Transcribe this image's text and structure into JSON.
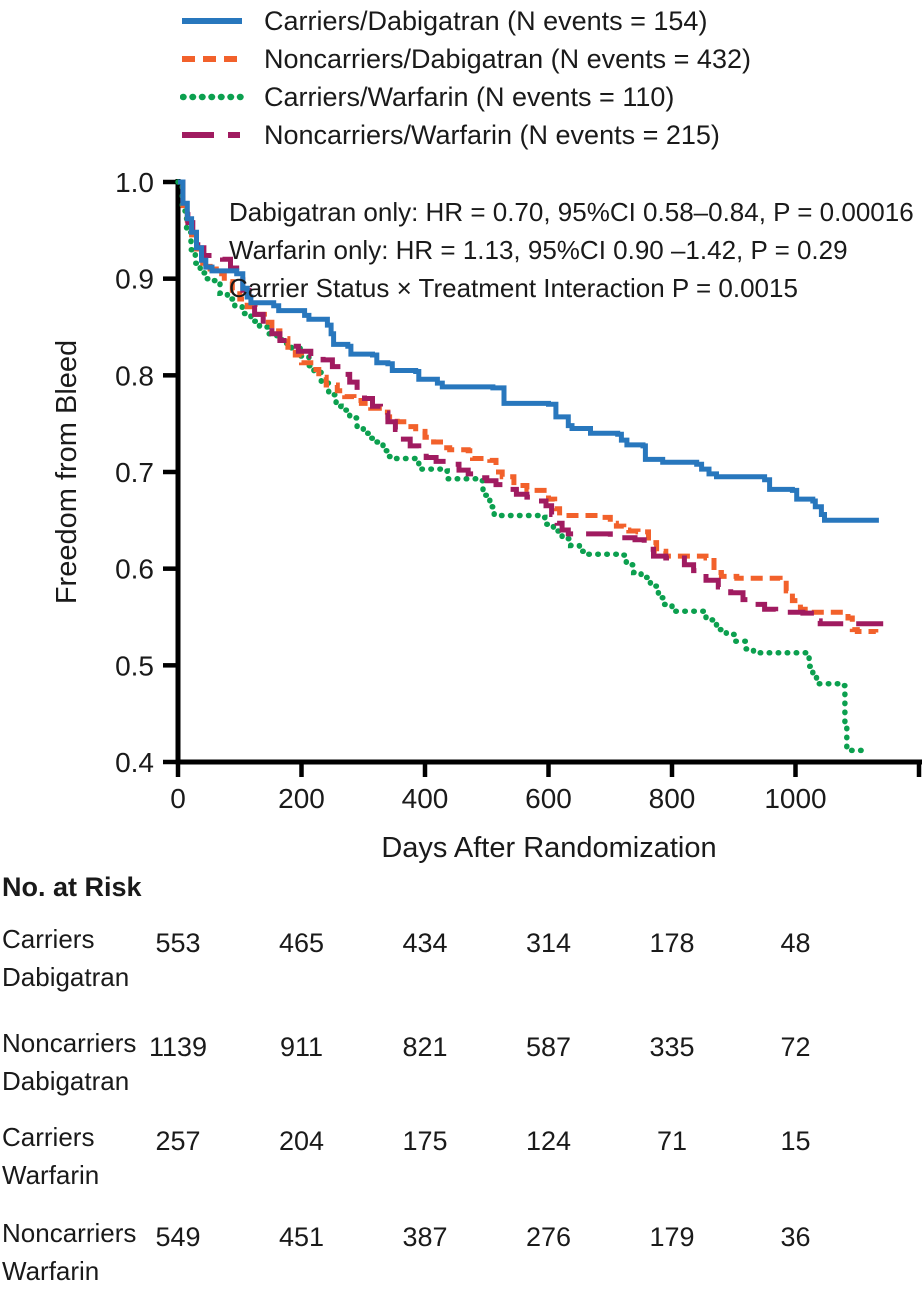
{
  "figure": {
    "background": "#ffffff"
  },
  "colors": {
    "carriers_dabigatran": "#2877BD",
    "noncarriers_dabigatran": "#F2612B",
    "carriers_warfarin": "#0CA04F",
    "noncarriers_warfarin": "#A01B60",
    "axis": "#000000",
    "text": "#1a1a1a"
  },
  "legend": {
    "items": [
      {
        "label": "Carriers/Dabigatran (N events = 154)",
        "color": "#2877BD",
        "line_style": "solid"
      },
      {
        "label": "Noncarriers/Dabigatran (N events = 432)",
        "color": "#F2612B",
        "line_style": "dashed"
      },
      {
        "label": "Carriers/Warfarin (N events = 110)",
        "color": "#0CA04F",
        "line_style": "dotted"
      },
      {
        "label": "Noncarriers/Warfarin (N events = 215)",
        "color": "#A01B60",
        "line_style": "long-dash"
      }
    ]
  },
  "chart_data": {
    "type": "line",
    "subtype": "kaplan-meier-step",
    "title": "",
    "xlabel": "Days After Randomization",
    "ylabel": "Freedom from Bleed",
    "xlim": [
      0,
      1200
    ],
    "ylim": [
      0.4,
      1.0
    ],
    "grid": false,
    "legend_position": "top-left",
    "x_ticks": [
      {
        "value": 0,
        "label": "0"
      },
      {
        "value": 200,
        "label": "200"
      },
      {
        "value": 400,
        "label": "400"
      },
      {
        "value": 600,
        "label": "600"
      },
      {
        "value": 800,
        "label": "800"
      },
      {
        "value": 1000,
        "label": "1000"
      },
      {
        "value": 1200,
        "label": ""
      }
    ],
    "y_ticks": [
      {
        "value": 1.0,
        "label": "1.0"
      },
      {
        "value": 0.9,
        "label": "0.9"
      },
      {
        "value": 0.8,
        "label": "0.8"
      },
      {
        "value": 0.7,
        "label": "0.7"
      },
      {
        "value": 0.6,
        "label": "0.6"
      },
      {
        "value": 0.5,
        "label": "0.5"
      },
      {
        "value": 0.4,
        "label": "0.4"
      }
    ],
    "annotations": [
      "Dabigatran only: HR = 0.70, 95%CI 0.58–0.84, P = 0.00016",
      "Warfarin only: HR = 1.13, 95%CI 0.90 –1.42, P = 0.29",
      "Carrier Status × Treatment Interaction P = 0.0015"
    ],
    "series": [
      {
        "name": "Carriers/Warfarin",
        "n_events": 110,
        "color": "#0CA04F",
        "line_style": "dotted",
        "points": [
          [
            0,
            1.0
          ],
          [
            7,
            0.97
          ],
          [
            14,
            0.948
          ],
          [
            21,
            0.93
          ],
          [
            28,
            0.916
          ],
          [
            36,
            0.906
          ],
          [
            45,
            0.9
          ],
          [
            55,
            0.898
          ],
          [
            68,
            0.885
          ],
          [
            80,
            0.879
          ],
          [
            92,
            0.872
          ],
          [
            104,
            0.864
          ],
          [
            118,
            0.856
          ],
          [
            132,
            0.85
          ],
          [
            145,
            0.843
          ],
          [
            160,
            0.837
          ],
          [
            172,
            0.833
          ],
          [
            184,
            0.828
          ],
          [
            198,
            0.82
          ],
          [
            212,
            0.81
          ],
          [
            220,
            0.803
          ],
          [
            232,
            0.792
          ],
          [
            244,
            0.78
          ],
          [
            256,
            0.768
          ],
          [
            264,
            0.764
          ],
          [
            278,
            0.756
          ],
          [
            290,
            0.747
          ],
          [
            300,
            0.74
          ],
          [
            312,
            0.735
          ],
          [
            322,
            0.731
          ],
          [
            332,
            0.722
          ],
          [
            340,
            0.716
          ],
          [
            348,
            0.714
          ],
          [
            390,
            0.703
          ],
          [
            430,
            0.701
          ],
          [
            436,
            0.693
          ],
          [
            488,
            0.691
          ],
          [
            494,
            0.676
          ],
          [
            505,
            0.664
          ],
          [
            512,
            0.655
          ],
          [
            585,
            0.653
          ],
          [
            594,
            0.646
          ],
          [
            608,
            0.639
          ],
          [
            622,
            0.631
          ],
          [
            636,
            0.624
          ],
          [
            650,
            0.618
          ],
          [
            658,
            0.615
          ],
          [
            714,
            0.614
          ],
          [
            726,
            0.604
          ],
          [
            738,
            0.596
          ],
          [
            750,
            0.591
          ],
          [
            765,
            0.582
          ],
          [
            778,
            0.57
          ],
          [
            788,
            0.563
          ],
          [
            800,
            0.556
          ],
          [
            855,
            0.549
          ],
          [
            862,
            0.547
          ],
          [
            872,
            0.537
          ],
          [
            888,
            0.532
          ],
          [
            902,
            0.525
          ],
          [
            920,
            0.517
          ],
          [
            932,
            0.513
          ],
          [
            1014,
            0.513
          ],
          [
            1022,
            0.499
          ],
          [
            1028,
            0.488
          ],
          [
            1034,
            0.481
          ],
          [
            1075,
            0.479
          ],
          [
            1080,
            0.44
          ],
          [
            1083,
            0.412
          ],
          [
            1112,
            0.411
          ]
        ]
      },
      {
        "name": "Noncarriers/Dabigatran",
        "n_events": 432,
        "color": "#F2612B",
        "line_style": "dashed",
        "points": [
          [
            0,
            1.0
          ],
          [
            8,
            0.972
          ],
          [
            15,
            0.955
          ],
          [
            22,
            0.94
          ],
          [
            30,
            0.928
          ],
          [
            40,
            0.916
          ],
          [
            52,
            0.91
          ],
          [
            62,
            0.905
          ],
          [
            75,
            0.897
          ],
          [
            88,
            0.888
          ],
          [
            100,
            0.879
          ],
          [
            112,
            0.871
          ],
          [
            125,
            0.863
          ],
          [
            140,
            0.855
          ],
          [
            152,
            0.846
          ],
          [
            165,
            0.838
          ],
          [
            178,
            0.829
          ],
          [
            190,
            0.821
          ],
          [
            200,
            0.813
          ],
          [
            215,
            0.806
          ],
          [
            228,
            0.798
          ],
          [
            240,
            0.79
          ],
          [
            258,
            0.784
          ],
          [
            270,
            0.778
          ],
          [
            285,
            0.774
          ],
          [
            297,
            0.771
          ],
          [
            312,
            0.766
          ],
          [
            326,
            0.762
          ],
          [
            340,
            0.757
          ],
          [
            355,
            0.752
          ],
          [
            370,
            0.747
          ],
          [
            385,
            0.742
          ],
          [
            400,
            0.736
          ],
          [
            414,
            0.731
          ],
          [
            430,
            0.725
          ],
          [
            440,
            0.723
          ],
          [
            470,
            0.722
          ],
          [
            477,
            0.714
          ],
          [
            505,
            0.712
          ],
          [
            515,
            0.7
          ],
          [
            525,
            0.695
          ],
          [
            544,
            0.686
          ],
          [
            565,
            0.682
          ],
          [
            575,
            0.681
          ],
          [
            600,
            0.672
          ],
          [
            610,
            0.662
          ],
          [
            618,
            0.655
          ],
          [
            684,
            0.653
          ],
          [
            700,
            0.647
          ],
          [
            710,
            0.644
          ],
          [
            722,
            0.64
          ],
          [
            730,
            0.639
          ],
          [
            745,
            0.638
          ],
          [
            762,
            0.627
          ],
          [
            775,
            0.618
          ],
          [
            790,
            0.613
          ],
          [
            855,
            0.611
          ],
          [
            868,
            0.596
          ],
          [
            880,
            0.592
          ],
          [
            905,
            0.59
          ],
          [
            975,
            0.588
          ],
          [
            985,
            0.577
          ],
          [
            995,
            0.567
          ],
          [
            1008,
            0.558
          ],
          [
            1020,
            0.555
          ],
          [
            1085,
            0.549
          ],
          [
            1092,
            0.537
          ],
          [
            1100,
            0.535
          ],
          [
            1130,
            0.534
          ]
        ]
      },
      {
        "name": "Noncarriers/Warfarin",
        "n_events": 215,
        "color": "#A01B60",
        "line_style": "long-dash",
        "points": [
          [
            0,
            1.0
          ],
          [
            8,
            0.975
          ],
          [
            16,
            0.958
          ],
          [
            24,
            0.944
          ],
          [
            32,
            0.932
          ],
          [
            42,
            0.924
          ],
          [
            55,
            0.922
          ],
          [
            72,
            0.92
          ],
          [
            85,
            0.911
          ],
          [
            95,
            0.905
          ],
          [
            105,
            0.888
          ],
          [
            115,
            0.872
          ],
          [
            124,
            0.863
          ],
          [
            138,
            0.852
          ],
          [
            152,
            0.843
          ],
          [
            165,
            0.836
          ],
          [
            178,
            0.83
          ],
          [
            195,
            0.825
          ],
          [
            215,
            0.82
          ],
          [
            235,
            0.816
          ],
          [
            250,
            0.809
          ],
          [
            265,
            0.801
          ],
          [
            278,
            0.793
          ],
          [
            290,
            0.784
          ],
          [
            302,
            0.776
          ],
          [
            315,
            0.768
          ],
          [
            328,
            0.761
          ],
          [
            340,
            0.752
          ],
          [
            352,
            0.744
          ],
          [
            365,
            0.734
          ],
          [
            376,
            0.727
          ],
          [
            390,
            0.72
          ],
          [
            402,
            0.715
          ],
          [
            418,
            0.711
          ],
          [
            438,
            0.708
          ],
          [
            455,
            0.702
          ],
          [
            470,
            0.698
          ],
          [
            485,
            0.694
          ],
          [
            500,
            0.691
          ],
          [
            515,
            0.687
          ],
          [
            530,
            0.682
          ],
          [
            548,
            0.677
          ],
          [
            565,
            0.674
          ],
          [
            580,
            0.67
          ],
          [
            596,
            0.665
          ],
          [
            605,
            0.656
          ],
          [
            614,
            0.647
          ],
          [
            622,
            0.64
          ],
          [
            632,
            0.636
          ],
          [
            700,
            0.632
          ],
          [
            740,
            0.63
          ],
          [
            755,
            0.62
          ],
          [
            770,
            0.613
          ],
          [
            790,
            0.611
          ],
          [
            820,
            0.604
          ],
          [
            835,
            0.598
          ],
          [
            855,
            0.588
          ],
          [
            875,
            0.581
          ],
          [
            895,
            0.575
          ],
          [
            915,
            0.568
          ],
          [
            934,
            0.563
          ],
          [
            950,
            0.558
          ],
          [
            968,
            0.555
          ],
          [
            1012,
            0.554
          ],
          [
            1030,
            0.546
          ],
          [
            1040,
            0.543
          ],
          [
            1145,
            0.542
          ]
        ]
      },
      {
        "name": "Carriers/Dabigatran",
        "n_events": 154,
        "color": "#2877BD",
        "line_style": "solid",
        "points": [
          [
            0,
            1.0
          ],
          [
            8,
            0.978
          ],
          [
            15,
            0.962
          ],
          [
            22,
            0.948
          ],
          [
            30,
            0.932
          ],
          [
            38,
            0.919
          ],
          [
            45,
            0.912
          ],
          [
            55,
            0.908
          ],
          [
            95,
            0.905
          ],
          [
            105,
            0.89
          ],
          [
            112,
            0.881
          ],
          [
            118,
            0.875
          ],
          [
            155,
            0.872
          ],
          [
            163,
            0.867
          ],
          [
            205,
            0.862
          ],
          [
            212,
            0.858
          ],
          [
            242,
            0.852
          ],
          [
            248,
            0.843
          ],
          [
            252,
            0.832
          ],
          [
            275,
            0.83
          ],
          [
            280,
            0.822
          ],
          [
            315,
            0.821
          ],
          [
            322,
            0.813
          ],
          [
            340,
            0.812
          ],
          [
            347,
            0.805
          ],
          [
            385,
            0.804
          ],
          [
            390,
            0.796
          ],
          [
            420,
            0.792
          ],
          [
            428,
            0.788
          ],
          [
            510,
            0.787
          ],
          [
            528,
            0.771
          ],
          [
            600,
            0.77
          ],
          [
            612,
            0.757
          ],
          [
            632,
            0.748
          ],
          [
            638,
            0.745
          ],
          [
            668,
            0.74
          ],
          [
            712,
            0.739
          ],
          [
            718,
            0.733
          ],
          [
            727,
            0.728
          ],
          [
            753,
            0.727
          ],
          [
            757,
            0.713
          ],
          [
            785,
            0.71
          ],
          [
            840,
            0.708
          ],
          [
            848,
            0.703
          ],
          [
            860,
            0.698
          ],
          [
            872,
            0.695
          ],
          [
            950,
            0.692
          ],
          [
            958,
            0.682
          ],
          [
            995,
            0.681
          ],
          [
            1002,
            0.672
          ],
          [
            1028,
            0.67
          ],
          [
            1032,
            0.664
          ],
          [
            1042,
            0.656
          ],
          [
            1047,
            0.65
          ],
          [
            1135,
            0.65
          ]
        ]
      }
    ]
  },
  "risk_table": {
    "title": "No. at Risk",
    "time_points": [
      0,
      200,
      400,
      600,
      800,
      1000
    ],
    "rows": [
      {
        "label": [
          "Carriers",
          "Dabigatran"
        ],
        "values": [
          "553",
          "465",
          "434",
          "314",
          "178",
          "48"
        ]
      },
      {
        "label": [
          "Noncarriers",
          "Dabigatran"
        ],
        "values": [
          "1139",
          "911",
          "821",
          "587",
          "335",
          "72"
        ]
      },
      {
        "label": [
          "Carriers",
          "Warfarin"
        ],
        "values": [
          "257",
          "204",
          "175",
          "124",
          "71",
          "15"
        ]
      },
      {
        "label": [
          "Noncarriers",
          "Warfarin"
        ],
        "values": [
          "549",
          "451",
          "387",
          "276",
          "179",
          "36"
        ]
      }
    ]
  }
}
